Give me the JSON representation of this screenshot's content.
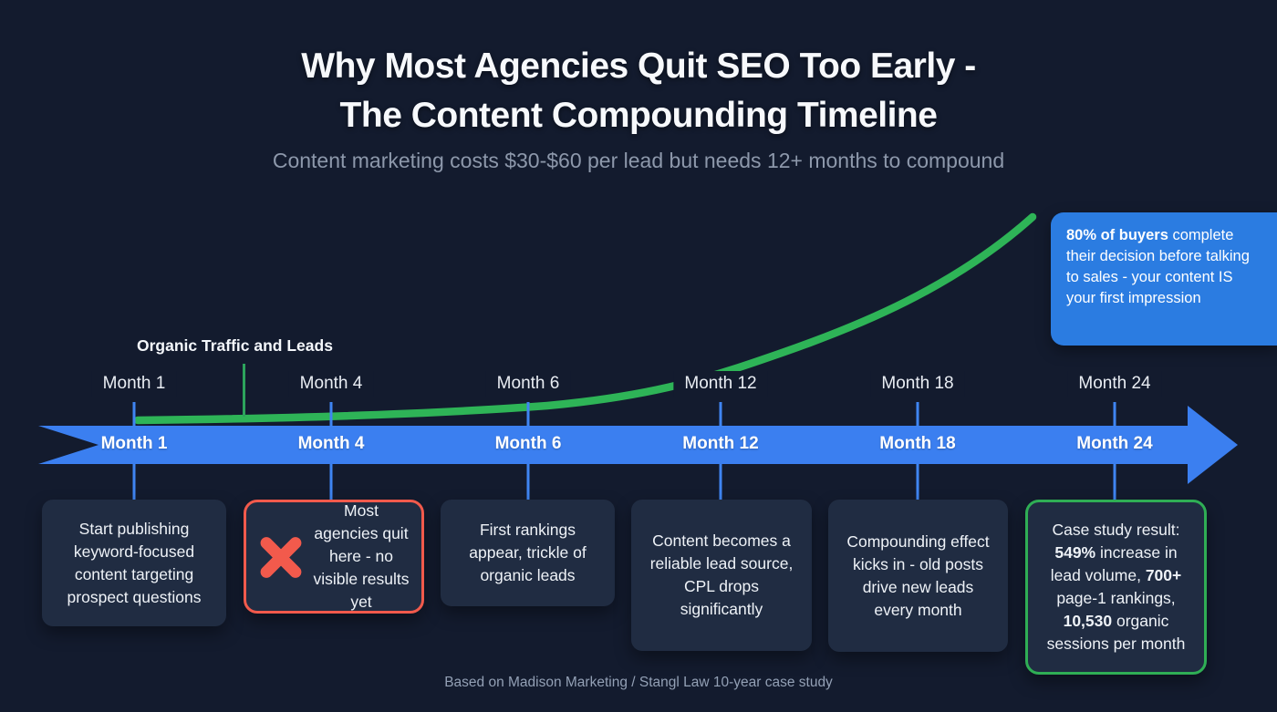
{
  "page": {
    "title_line1": "Why Most Agencies Quit SEO Too Early -",
    "title_line2": "The Content Compounding Timeline",
    "subtitle": "Content marketing costs $30-$60 per lead but needs 12+ months to compound",
    "footer": "Based on Madison Marketing / Stangl Law 10-year case study"
  },
  "callout": {
    "lead": "80% of buyers",
    "body": " complete their decision before talking to sales - your content IS your first impression"
  },
  "curve": {
    "label": "Organic Traffic and Leads",
    "description": "Exponential growth curve: flat from Month 1 to Month 6, rising slowly through Month 12, climbing steeply past Month 18 toward Month 24"
  },
  "timeline": {
    "months": [
      {
        "label": "Month 1"
      },
      {
        "label": "Month 4"
      },
      {
        "label": "Month 6"
      },
      {
        "label": "Month 12"
      },
      {
        "label": "Month 18"
      },
      {
        "label": "Month 24"
      }
    ]
  },
  "cards": [
    {
      "style": "default",
      "text": "Start publishing keyword-focused content targeting prospect questions"
    },
    {
      "style": "warning",
      "icon": "x-icon",
      "text": "Most agencies quit here - no visible results yet"
    },
    {
      "style": "default",
      "text": "First rankings appear, trickle of organic leads"
    },
    {
      "style": "default",
      "text": "Content becomes a reliable lead source, CPL drops significantly"
    },
    {
      "style": "default",
      "text": "Compounding effect kicks in - old posts drive new leads every month"
    },
    {
      "style": "success",
      "rich": [
        {
          "t": "Case study result: "
        },
        {
          "t": "549%",
          "b": true
        },
        {
          "t": " increase in lead volume, "
        },
        {
          "t": "700+",
          "b": true
        },
        {
          "t": " page-1 rankings, "
        },
        {
          "t": "10,530",
          "b": true
        },
        {
          "t": " organic sessions per month"
        }
      ]
    }
  ],
  "colors": {
    "background": "#131b2e",
    "timeline_blue": "#3b7ff0",
    "tick_blue": "#3f85f2",
    "curve_green": "#2eb457",
    "success_green": "#2fae55",
    "warning_red": "#f25a4c",
    "callout_blue": "#2b7ce1",
    "card_background": "#202c42",
    "muted_text": "#8d98ab"
  }
}
